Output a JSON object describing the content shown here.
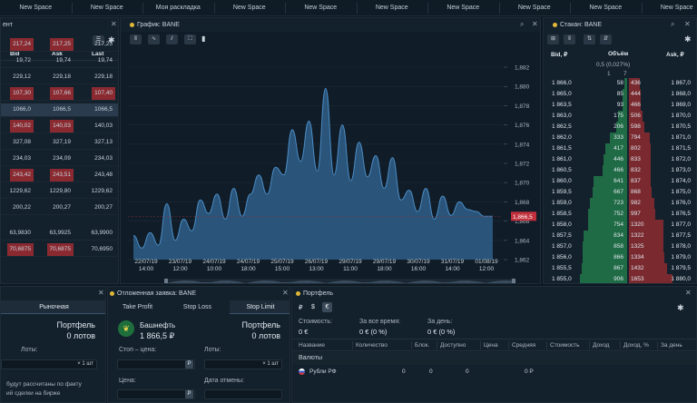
{
  "space_tabs": [
    "New Space",
    "New Space",
    "Моя раскладка",
    "New Space",
    "New Space",
    "New Space",
    "New Space",
    "New Space",
    "New Space",
    "New Space"
  ],
  "left_panel": {
    "title": "ент",
    "columns": [
      "Bid",
      "Ask",
      "Last"
    ],
    "rows": [
      {
        "bid": "217,24",
        "ask": "217,25",
        "last": "217,25",
        "hl": "red"
      },
      {
        "bid": "19,72",
        "ask": "19,74",
        "last": "19,74",
        "hl": "none"
      },
      {
        "bid": "229,12",
        "ask": "229,18",
        "last": "229,18",
        "hl": "none"
      },
      {
        "bid": "107,30",
        "ask": "107,66",
        "last": "107,40",
        "hl": "red"
      },
      {
        "bid": "1066,0",
        "ask": "1066,5",
        "last": "1066,5",
        "hl": "blue"
      },
      {
        "bid": "140,02",
        "ask": "140,03",
        "last": "140,03",
        "hl": "red"
      },
      {
        "bid": "327,08",
        "ask": "327,19",
        "last": "327,13",
        "hl": "none"
      },
      {
        "bid": "234,03",
        "ask": "234,09",
        "last": "234,03",
        "hl": "none"
      },
      {
        "bid": "243,42",
        "ask": "243,51",
        "last": "243,48",
        "hl": "red"
      },
      {
        "bid": "1229,62",
        "ask": "1229,80",
        "last": "1229,62",
        "hl": "none"
      },
      {
        "bid": "200,22",
        "ask": "200,27",
        "last": "200,27",
        "hl": "none"
      },
      {
        "bid": "63,9830",
        "ask": "63,9925",
        "last": "63,9900",
        "hl": "none"
      },
      {
        "bid": "70,6875",
        "ask": "70,6875",
        "last": "70,6950",
        "hl": "red"
      }
    ]
  },
  "chart_panel": {
    "title": "График: BANE",
    "tool_icons": [
      "candles-icon",
      "line-icon",
      "indicator-icon",
      "fullscreen-icon",
      "volume-icon"
    ]
  },
  "chart_data": {
    "type": "area",
    "title": "",
    "ylim": [
      1862,
      1882
    ],
    "y_ticks": [
      "1,882",
      "1,880",
      "1,878",
      "1,876",
      "1,874",
      "1,872",
      "1,870",
      "1,868",
      "1,866",
      "1,864",
      "1,862"
    ],
    "x_ticks": [
      [
        "22/07/19",
        "14:00"
      ],
      [
        "23/07/19",
        "12:00"
      ],
      [
        "24/07/19",
        "10:00"
      ],
      [
        "24/07/19",
        "18:00"
      ],
      [
        "25/07/19",
        "15:00"
      ],
      [
        "26/07/19",
        "13:00"
      ],
      [
        "29/07/19",
        "11:00"
      ],
      [
        "29/07/19",
        "18:00"
      ],
      [
        "30/07/19",
        "16:00"
      ],
      [
        "31/07/19",
        "14:00"
      ],
      [
        "01/08/19",
        "12:00"
      ]
    ],
    "current_price": "1,866,5",
    "current_value": 1866.5,
    "values": [
      1864.5,
      1863.2,
      1864.8,
      1863.5,
      1867.8,
      1864.0,
      1866.2,
      1865.0,
      1868.2,
      1866.8,
      1868.8,
      1866.2,
      1869.4,
      1866.5,
      1868.8,
      1870.8,
      1868.8,
      1871.6,
      1870.8,
      1875.5,
      1872.2,
      1876.4,
      1871.2,
      1879.8,
      1870.8,
      1876.0,
      1870.2,
      1874.2,
      1870.6,
      1872.8,
      1869.4,
      1872.6,
      1868.2,
      1869.2,
      1867.0,
      1869.4,
      1866.2,
      1868.6,
      1866.6,
      1868.0,
      1867.2,
      1867.0,
      1866.5,
      1866.5
    ]
  },
  "orderbook": {
    "title": "Стакан: BANE",
    "columns": [
      "Bid, ₽",
      "Объём",
      "Ask, ₽"
    ],
    "spread": "0,5 (0,027%)",
    "top_row": [
      "1",
      "7"
    ],
    "rows": [
      [
        "1 866,0",
        "58",
        "436",
        "1 867,0"
      ],
      [
        "1 865,0",
        "85",
        "444",
        "1 868,0"
      ],
      [
        "1 863,5",
        "93",
        "466",
        "1 869,0"
      ],
      [
        "1 863,0",
        "175",
        "506",
        "1 870,0"
      ],
      [
        "1 862,5",
        "206",
        "598",
        "1 870,5"
      ],
      [
        "1 862,0",
        "333",
        "794",
        "1 871,0"
      ],
      [
        "1 861,5",
        "417",
        "802",
        "1 871,5"
      ],
      [
        "1 861,0",
        "446",
        "833",
        "1 872,0"
      ],
      [
        "1 860,5",
        "466",
        "832",
        "1 873,0"
      ],
      [
        "1 860,0",
        "641",
        "837",
        "1 874,0"
      ],
      [
        "1 859,5",
        "667",
        "868",
        "1 875,0"
      ],
      [
        "1 859,0",
        "723",
        "982",
        "1 876,0"
      ],
      [
        "1 858,5",
        "752",
        "997",
        "1 876,5"
      ],
      [
        "1 858,0",
        "754",
        "1320",
        "1 877,0"
      ],
      [
        "1 857,5",
        "834",
        "1322",
        "1 877,5"
      ],
      [
        "1 857,0",
        "858",
        "1325",
        "1 878,0"
      ],
      [
        "1 856,0",
        "866",
        "1334",
        "1 879,0"
      ],
      [
        "1 855,5",
        "867",
        "1432",
        "1 879,5"
      ],
      [
        "1 855,0",
        "906",
        "1653",
        "1 880,0"
      ]
    ],
    "bid_fill": [
      0.06,
      0.09,
      0.1,
      0.18,
      0.22,
      0.36,
      0.44,
      0.48,
      0.5,
      0.68,
      0.7,
      0.76,
      0.79,
      0.8,
      0.88,
      0.9,
      0.91,
      0.92,
      0.96
    ],
    "ask_fill": [
      0.26,
      0.27,
      0.28,
      0.31,
      0.36,
      0.48,
      0.49,
      0.5,
      0.5,
      0.51,
      0.53,
      0.59,
      0.6,
      0.8,
      0.8,
      0.8,
      0.81,
      0.87,
      1.0
    ]
  },
  "market_panel": {
    "tab": "Рыночная",
    "portfolio_label": "Портфель",
    "portfolio_value": "0 лотов",
    "lots_label": "Лоты:",
    "lots_unit": "× 1 шт",
    "note_line1": "будут рассчитаны по факту",
    "note_line2": "ий сделки на бирже"
  },
  "order_panel": {
    "title": "Отложенная заявка: BANE",
    "tabs": [
      "Take Profit",
      "Stop Loss",
      "Stop Limit"
    ],
    "active_tab": "Stop Limit",
    "company": "Башнефть",
    "price": "1 866,5 ₽",
    "portfolio_label": "Портфель",
    "portfolio_value": "0 лотов",
    "stop_price_label": "Стоп – цена:",
    "lots_label": "Лоты:",
    "lots_unit": "× 1 шт",
    "price_label": "Цена:",
    "expiry_label": "Дата отмены:",
    "currency_btn": "P"
  },
  "portfolio_panel": {
    "title": "Портфель",
    "currency_tabs": [
      "₽",
      "$",
      "€"
    ],
    "stats": [
      {
        "label": "Стоимость:",
        "value": "0 €"
      },
      {
        "label": "За все время:",
        "value": "0 € (0 %)"
      },
      {
        "label": "За день:",
        "value": "0 € (0 %)"
      }
    ],
    "columns": [
      "Название",
      "Количество",
      "Блок.",
      "Доступно",
      "Цена",
      "Средняя",
      "Стоимость",
      "Доход",
      "Доход, %",
      "За день"
    ],
    "group": "Валюты",
    "row": {
      "name": "Рубли РФ",
      "qty": "0",
      "block": "0",
      "avail": "0",
      "price": "",
      "avg": "0 P"
    }
  }
}
